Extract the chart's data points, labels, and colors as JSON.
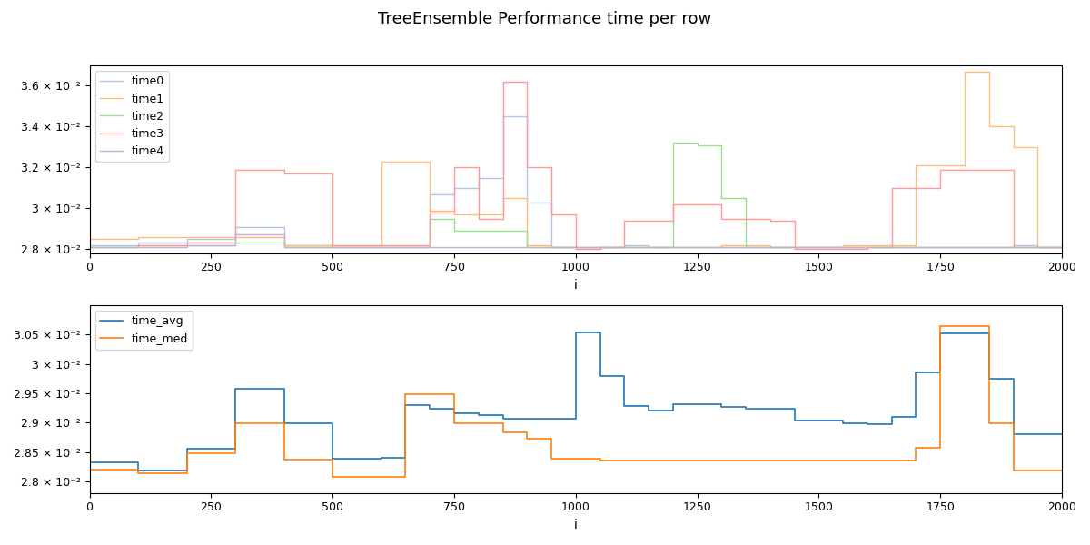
{
  "title": "TreeEnsemble Performance time per row",
  "xlabel": "i",
  "ylabel": "",
  "x_max": 2000,
  "subplot1": {
    "ylim": [
      0.0278,
      0.037
    ],
    "yticks": [
      0.028,
      0.03,
      0.032,
      0.034,
      0.036
    ],
    "ytick_labels": [
      "2.8 × 10⁻²",
      "3 × 10⁻²",
      "3.2 × 10⁻²",
      "3.4 × 10⁻²",
      "3.6 × 10⁻²"
    ],
    "series": {
      "time0": {
        "color": "#aec6e8",
        "x": [
          0,
          100,
          200,
          300,
          400,
          500,
          600,
          700,
          750,
          800,
          850,
          900,
          950,
          1000,
          1050,
          1100,
          1150,
          1200,
          1250,
          1300,
          1350,
          1400,
          1450,
          1500,
          1550,
          1600,
          1650,
          1700,
          1750,
          1800,
          1850,
          1900,
          1950,
          2000
        ],
        "y": [
          0.0282,
          0.0283,
          0.0285,
          0.0291,
          0.0282,
          0.0281,
          0.0281,
          0.0307,
          0.031,
          0.0315,
          0.0345,
          0.0303,
          0.0281,
          0.028,
          0.0281,
          0.0282,
          0.0281,
          0.0281,
          0.0281,
          0.0281,
          0.0281,
          0.0281,
          0.0281,
          0.0281,
          0.0281,
          0.0281,
          0.0281,
          0.0281,
          0.0281,
          0.0281,
          0.0281,
          0.0282,
          0.0281,
          0.0281
        ]
      },
      "time1": {
        "color": "#ffbb78",
        "x": [
          0,
          100,
          200,
          300,
          400,
          500,
          600,
          700,
          750,
          800,
          850,
          900,
          950,
          1000,
          1050,
          1100,
          1150,
          1200,
          1250,
          1300,
          1350,
          1400,
          1450,
          1500,
          1550,
          1600,
          1650,
          1700,
          1750,
          1800,
          1850,
          1900,
          1950,
          2000
        ],
        "y": [
          0.0285,
          0.0286,
          0.0286,
          0.0286,
          0.0282,
          0.0282,
          0.0323,
          0.0299,
          0.0297,
          0.0297,
          0.0305,
          0.0282,
          0.0281,
          0.0281,
          0.0281,
          0.0281,
          0.0281,
          0.0281,
          0.0281,
          0.0282,
          0.0282,
          0.0281,
          0.0281,
          0.0281,
          0.0282,
          0.0282,
          0.0282,
          0.0321,
          0.0321,
          0.0367,
          0.034,
          0.033,
          0.0281,
          0.0281
        ]
      },
      "time2": {
        "color": "#98df8a",
        "x": [
          0,
          100,
          200,
          300,
          400,
          500,
          600,
          700,
          750,
          800,
          850,
          900,
          950,
          1000,
          1050,
          1100,
          1150,
          1200,
          1250,
          1300,
          1350,
          1400,
          1450,
          1500,
          1550,
          1600,
          1650,
          1700,
          1750,
          1800,
          1850,
          1900,
          1950,
          2000
        ],
        "y": [
          0.0281,
          0.0282,
          0.0282,
          0.0283,
          0.0281,
          0.0281,
          0.0281,
          0.0295,
          0.0289,
          0.0289,
          0.0289,
          0.0281,
          0.0281,
          0.0281,
          0.0281,
          0.0281,
          0.0281,
          0.0332,
          0.0331,
          0.0305,
          0.0281,
          0.0281,
          0.0281,
          0.0281,
          0.0281,
          0.0281,
          0.0281,
          0.0281,
          0.0281,
          0.0281,
          0.0281,
          0.0281,
          0.0281,
          0.0281
        ]
      },
      "time3": {
        "color": "#ff9896",
        "x": [
          0,
          100,
          200,
          300,
          400,
          500,
          600,
          700,
          750,
          800,
          850,
          900,
          950,
          1000,
          1050,
          1100,
          1150,
          1200,
          1250,
          1300,
          1350,
          1400,
          1450,
          1500,
          1550,
          1600,
          1650,
          1700,
          1750,
          1800,
          1850,
          1900,
          1950,
          2000
        ],
        "y": [
          0.0281,
          0.0282,
          0.0283,
          0.0319,
          0.0317,
          0.0282,
          0.0282,
          0.0298,
          0.032,
          0.0295,
          0.0362,
          0.032,
          0.0297,
          0.028,
          0.0281,
          0.0294,
          0.0294,
          0.0302,
          0.0302,
          0.0295,
          0.0295,
          0.0294,
          0.028,
          0.028,
          0.028,
          0.0281,
          0.031,
          0.031,
          0.0319,
          0.0319,
          0.0319,
          0.0281,
          0.0281,
          0.0281
        ]
      },
      "time4": {
        "color": "#c5b0d5",
        "x": [
          0,
          100,
          200,
          300,
          400,
          500,
          600,
          700,
          750,
          800,
          850,
          900,
          950,
          1000,
          1050,
          1100,
          1150,
          1200,
          1250,
          1300,
          1350,
          1400,
          1450,
          1500,
          1550,
          1600,
          1650,
          1700,
          1750,
          1800,
          1850,
          1900,
          1950,
          2000
        ],
        "y": [
          0.0281,
          0.0281,
          0.0282,
          0.0287,
          0.0281,
          0.0281,
          0.0281,
          0.0281,
          0.0281,
          0.0281,
          0.0281,
          0.0281,
          0.0281,
          0.0281,
          0.0281,
          0.0281,
          0.0281,
          0.0281,
          0.0281,
          0.0281,
          0.0281,
          0.0281,
          0.0281,
          0.0281,
          0.0281,
          0.0281,
          0.0281,
          0.0281,
          0.0281,
          0.0281,
          0.0281,
          0.0281,
          0.0281,
          0.0281
        ]
      }
    }
  },
  "subplot2": {
    "ylim": [
      0.0278,
      0.031
    ],
    "yticks": [
      0.028,
      0.0285,
      0.029,
      0.0295,
      0.03,
      0.0305
    ],
    "ytick_labels": [
      "2.8 × 10⁻²",
      "2.85 × 10⁻²",
      "2.9 × 10⁻²",
      "2.95 × 10⁻²",
      "3 × 10⁻²",
      "3.05 × 10⁻²"
    ],
    "series": {
      "time_avg": {
        "color": "#1f77b4",
        "x": [
          0,
          100,
          200,
          300,
          400,
          500,
          600,
          650,
          700,
          750,
          800,
          850,
          900,
          950,
          1000,
          1050,
          1100,
          1150,
          1200,
          1250,
          1300,
          1350,
          1400,
          1450,
          1500,
          1550,
          1600,
          1650,
          1700,
          1750,
          1800,
          1850,
          1900,
          1950,
          2000
        ],
        "y": [
          0.02832,
          0.02818,
          0.02856,
          0.02958,
          0.02898,
          0.02838,
          0.0284,
          0.0293,
          0.02923,
          0.02916,
          0.02913,
          0.02906,
          0.02906,
          0.02906,
          0.03053,
          0.0298,
          0.02928,
          0.0292,
          0.02932,
          0.02932,
          0.02926,
          0.02924,
          0.02924,
          0.02903,
          0.02903,
          0.02898,
          0.02897,
          0.0291,
          0.02986,
          0.03052,
          0.03052,
          0.02975,
          0.0288,
          0.0288,
          0.0288
        ]
      },
      "time_med": {
        "color": "#ff7f0e",
        "x": [
          0,
          100,
          200,
          300,
          400,
          500,
          600,
          650,
          700,
          750,
          800,
          850,
          900,
          950,
          1000,
          1050,
          1100,
          1150,
          1200,
          1250,
          1300,
          1350,
          1400,
          1450,
          1500,
          1550,
          1600,
          1650,
          1700,
          1750,
          1800,
          1850,
          1900,
          1950,
          2000
        ],
        "y": [
          0.0282,
          0.02813,
          0.02847,
          0.02898,
          0.02837,
          0.02808,
          0.02808,
          0.02948,
          0.02948,
          0.02898,
          0.02898,
          0.02884,
          0.02873,
          0.02838,
          0.02838,
          0.02836,
          0.02836,
          0.02836,
          0.02836,
          0.02836,
          0.02836,
          0.02836,
          0.02836,
          0.02836,
          0.02836,
          0.02836,
          0.02836,
          0.02836,
          0.02857,
          0.03065,
          0.03065,
          0.02898,
          0.02818,
          0.02818,
          0.02818
        ]
      }
    }
  }
}
